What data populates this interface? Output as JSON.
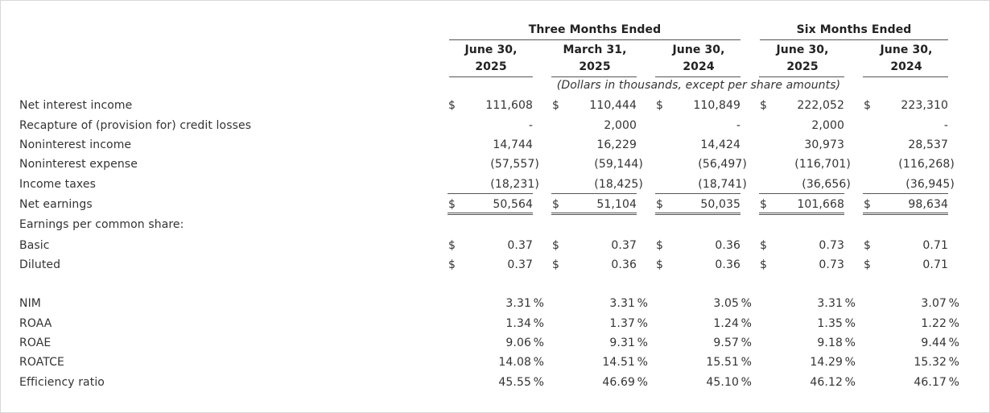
{
  "header": {
    "group_three": "Three Months Ended",
    "group_six": "Six Months Ended",
    "columns": [
      {
        "line1": "June 30,",
        "line2": "2025"
      },
      {
        "line1": "March 31,",
        "line2": "2025"
      },
      {
        "line1": "June 30,",
        "line2": "2024"
      },
      {
        "line1": "June 30,",
        "line2": "2025"
      },
      {
        "line1": "June 30,",
        "line2": "2024"
      }
    ],
    "units_note": "(Dollars in thousands, except per share amounts)"
  },
  "currency_symbol": "$",
  "rows": [
    {
      "label": "Net interest income",
      "dollar": true,
      "values": [
        "111,608",
        "110,444",
        "110,849",
        "222,052",
        "223,310"
      ]
    },
    {
      "label": "Recapture of (provision for) credit losses",
      "dollar": false,
      "values": [
        "-",
        "2,000",
        "-",
        "2,000",
        "-"
      ]
    },
    {
      "label": "Noninterest income",
      "dollar": false,
      "values": [
        "14,744",
        "16,229",
        "14,424",
        "30,973",
        "28,537"
      ]
    },
    {
      "label": "Noninterest expense",
      "dollar": false,
      "values": [
        "(57,557)",
        "(59,144)",
        "(56,497)",
        "(116,701)",
        "(116,268)"
      ]
    },
    {
      "label": "Income taxes",
      "dollar": false,
      "values": [
        "(18,231)",
        "(18,425)",
        "(18,741)",
        "(36,656)",
        "(36,945)"
      ]
    },
    {
      "label": "Net earnings",
      "dollar": true,
      "values": [
        "50,564",
        "51,104",
        "50,035",
        "101,668",
        "98,634"
      ]
    },
    {
      "label": "Earnings per common share:",
      "dollar": false,
      "values": [
        "",
        "",
        "",
        "",
        ""
      ]
    },
    {
      "label": "Basic",
      "dollar": true,
      "values": [
        "0.37",
        "0.37",
        "0.36",
        "0.73",
        "0.71"
      ]
    },
    {
      "label": "Diluted",
      "dollar": true,
      "values": [
        "0.37",
        "0.36",
        "0.36",
        "0.73",
        "0.71"
      ]
    }
  ],
  "ratios": [
    {
      "label": "NIM",
      "values": [
        "3.31",
        "3.31",
        "3.05",
        "3.31",
        "3.07"
      ]
    },
    {
      "label": "ROAA",
      "values": [
        "1.34",
        "1.37",
        "1.24",
        "1.35",
        "1.22"
      ]
    },
    {
      "label": "ROAE",
      "values": [
        "9.06",
        "9.31",
        "9.57",
        "9.18",
        "9.44"
      ]
    },
    {
      "label": "ROATCE",
      "values": [
        "14.08",
        "14.51",
        "15.51",
        "14.29",
        "15.32"
      ]
    },
    {
      "label": "Efficiency ratio",
      "values": [
        "45.55",
        "46.69",
        "45.10",
        "46.12",
        "46.17"
      ]
    }
  ],
  "percent_symbol": "%"
}
